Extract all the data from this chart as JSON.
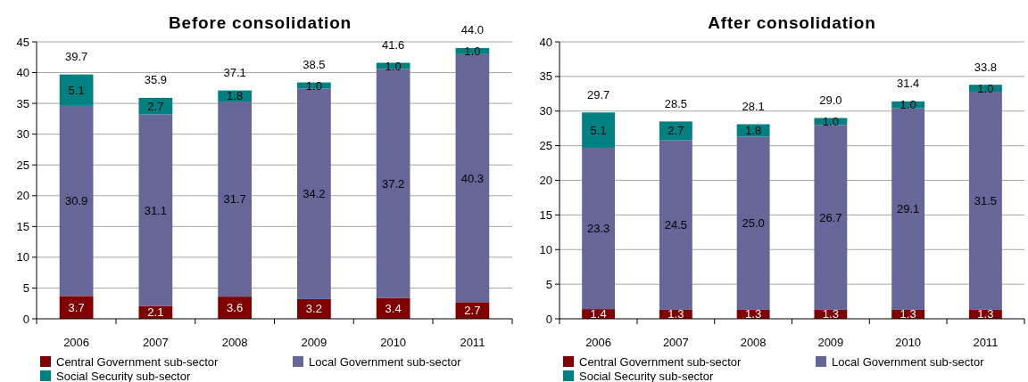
{
  "chart_data": [
    {
      "type": "bar",
      "title": "Before consolidation",
      "categories": [
        "2006",
        "2007",
        "2008",
        "2009",
        "2010",
        "2011"
      ],
      "stacked": true,
      "series": [
        {
          "name": "Central Government sub-sector",
          "color": "#800000",
          "values": [
            3.7,
            2.1,
            3.6,
            3.2,
            3.4,
            2.7
          ],
          "value_labels": [
            "3.7",
            "2.1",
            "3.6",
            "3.2",
            "3.4",
            "2.7"
          ]
        },
        {
          "name": "Local Government sub-sector",
          "color": "#666699",
          "values": [
            30.9,
            31.1,
            31.7,
            34.2,
            37.2,
            40.3
          ],
          "value_labels": [
            "30.9",
            "31.1",
            "31.7",
            "34.2",
            "37.2",
            "40.3"
          ]
        },
        {
          "name": "Social Security sub-sector",
          "color": "#008080",
          "values": [
            5.1,
            2.7,
            1.8,
            1.0,
            1.0,
            1.0
          ],
          "value_labels": [
            "5.1",
            "2.7",
            "1.8",
            "1.0",
            "1.0",
            "1.0"
          ]
        }
      ],
      "totals": [
        "39.7",
        "35.9",
        "37.1",
        "38.5",
        "41.6",
        "44.0"
      ],
      "ylim": [
        0,
        45
      ],
      "yticks": [
        0,
        5,
        10,
        15,
        20,
        25,
        30,
        35,
        40,
        45
      ],
      "grid": "y",
      "legend": "bottom"
    },
    {
      "type": "bar",
      "title": "After consolidation",
      "categories": [
        "2006",
        "2007",
        "2008",
        "2009",
        "2010",
        "2011"
      ],
      "stacked": true,
      "series": [
        {
          "name": "Central Government sub-sector",
          "color": "#800000",
          "values": [
            1.4,
            1.3,
            1.3,
            1.3,
            1.3,
            1.3
          ],
          "value_labels": [
            "1.4",
            "1.3",
            "1.3",
            "1.3",
            "1.3",
            "1.3"
          ]
        },
        {
          "name": "Local Government sub-sector",
          "color": "#666699",
          "values": [
            23.3,
            24.5,
            25.0,
            26.7,
            29.1,
            31.5
          ],
          "value_labels": [
            "23.3",
            "24.5",
            "25.0",
            "26.7",
            "29.1",
            "31.5"
          ]
        },
        {
          "name": "Social Security sub-sector",
          "color": "#008080",
          "values": [
            5.1,
            2.7,
            1.8,
            1.0,
            1.0,
            1.0
          ],
          "value_labels": [
            "5.1",
            "2.7",
            "1.8",
            "1.0",
            "1.0",
            "1.0"
          ]
        }
      ],
      "totals": [
        "29.7",
        "28.5",
        "28.1",
        "29.0",
        "31.4",
        "33.8"
      ],
      "ylim": [
        0,
        40
      ],
      "yticks": [
        0,
        5,
        10,
        15,
        20,
        25,
        30,
        35,
        40
      ],
      "grid": "y",
      "legend": "bottom"
    }
  ]
}
